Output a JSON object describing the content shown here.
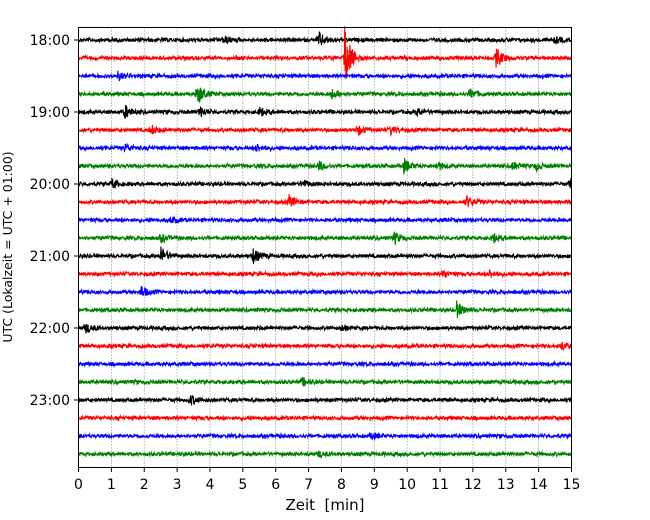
{
  "chart_data": {
    "type": "line",
    "title": "",
    "xlabel": "Zeit  [min]",
    "ylabel": "UTC (Lokalzeit = UTC + 01:00)",
    "xlim": [
      0,
      15
    ],
    "x_ticks": [
      "0",
      "1",
      "2",
      "3",
      "4",
      "5",
      "6",
      "7",
      "8",
      "9",
      "10",
      "11",
      "12",
      "13",
      "14",
      "15"
    ],
    "y_ticks": [
      "18:00",
      "19:00",
      "20:00",
      "21:00",
      "22:00",
      "23:00"
    ],
    "grid": "vertical dotted at each minute",
    "row_interval_min": 15,
    "colors": [
      "#000000",
      "#ff0000",
      "#0000ff",
      "#008000"
    ],
    "rows": [
      {
        "start": "18:00",
        "events": [
          [
            4.4,
            5
          ],
          [
            7.3,
            8
          ],
          [
            14.5,
            3
          ]
        ]
      },
      {
        "start": "18:15",
        "events": [
          [
            8.1,
            32
          ],
          [
            12.7,
            10
          ]
        ]
      },
      {
        "start": "18:30",
        "events": [
          [
            1.2,
            4
          ]
        ]
      },
      {
        "start": "18:45",
        "events": [
          [
            3.6,
            12
          ],
          [
            7.7,
            5
          ],
          [
            11.9,
            5
          ]
        ]
      },
      {
        "start": "19:00",
        "events": [
          [
            1.4,
            7
          ],
          [
            3.7,
            5
          ],
          [
            5.5,
            5
          ],
          [
            10.3,
            4
          ]
        ]
      },
      {
        "start": "19:15",
        "events": [
          [
            2.2,
            5
          ],
          [
            8.5,
            5
          ],
          [
            9.5,
            4
          ]
        ]
      },
      {
        "start": "19:30",
        "events": [
          [
            1.4,
            4
          ],
          [
            5.4,
            4
          ]
        ]
      },
      {
        "start": "19:45",
        "events": [
          [
            7.3,
            5
          ],
          [
            9.9,
            7
          ],
          [
            10.9,
            5
          ],
          [
            13.2,
            4
          ],
          [
            13.9,
            4
          ]
        ]
      },
      {
        "start": "20:00",
        "events": [
          [
            1.0,
            5
          ],
          [
            6.8,
            4
          ],
          [
            14.95,
            6
          ]
        ]
      },
      {
        "start": "20:15",
        "events": [
          [
            6.4,
            6
          ],
          [
            11.8,
            6
          ]
        ]
      },
      {
        "start": "20:30",
        "events": [
          [
            2.8,
            3
          ]
        ]
      },
      {
        "start": "20:45",
        "events": [
          [
            2.5,
            4
          ],
          [
            9.6,
            6
          ],
          [
            12.6,
            5
          ]
        ]
      },
      {
        "start": "21:00",
        "events": [
          [
            2.5,
            9
          ],
          [
            5.3,
            8
          ]
        ]
      },
      {
        "start": "21:15",
        "events": [
          [
            11.1,
            4
          ],
          [
            12.5,
            4
          ]
        ]
      },
      {
        "start": "21:30",
        "events": [
          [
            1.9,
            6
          ]
        ]
      },
      {
        "start": "21:45",
        "events": [
          [
            11.5,
            8
          ]
        ]
      },
      {
        "start": "22:00",
        "events": [
          [
            0.2,
            5
          ],
          [
            8.0,
            3
          ]
        ]
      },
      {
        "start": "22:15",
        "events": [
          [
            14.7,
            4
          ]
        ]
      },
      {
        "start": "22:30",
        "events": []
      },
      {
        "start": "22:45",
        "events": [
          [
            6.8,
            4
          ]
        ]
      },
      {
        "start": "23:00",
        "events": [
          [
            3.4,
            5
          ]
        ]
      },
      {
        "start": "23:15",
        "events": []
      },
      {
        "start": "23:30",
        "events": [
          [
            8.9,
            3
          ]
        ]
      },
      {
        "start": "23:45",
        "events": [
          [
            7.3,
            3
          ]
        ]
      }
    ]
  }
}
